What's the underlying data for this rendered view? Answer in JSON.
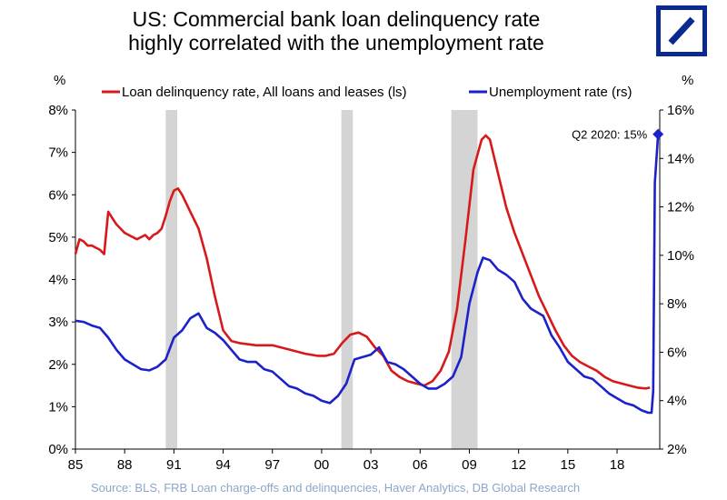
{
  "header": {
    "title_line1": "US: Commercial bank loan delinquency rate",
    "title_line2": "highly correlated with the unemployment rate"
  },
  "logo": {
    "icon": "deutsche-bank-slash-logo",
    "color": "#0b2a8f"
  },
  "source": "Source: BLS, FRB Loan charge-offs and delinquencies, Haver Analytics, DB Global  Research",
  "chart_data": {
    "type": "line",
    "title": "US: Commercial bank loan delinquency rate highly correlated with the unemployment rate",
    "left_axis": {
      "unit_label": "%",
      "range": [
        0,
        8
      ],
      "ticks": [
        "0%",
        "1%",
        "2%",
        "3%",
        "4%",
        "5%",
        "6%",
        "7%",
        "8%"
      ],
      "tick_values": [
        0,
        1,
        2,
        3,
        4,
        5,
        6,
        7,
        8
      ]
    },
    "right_axis": {
      "unit_label": "%",
      "range": [
        2,
        16
      ],
      "ticks": [
        "2%",
        "4%",
        "6%",
        "8%",
        "10%",
        "12%",
        "14%",
        "16%"
      ],
      "tick_values": [
        2,
        4,
        6,
        8,
        10,
        12,
        14,
        16
      ]
    },
    "x_axis": {
      "range": [
        1985,
        2020.6
      ],
      "ticks": [
        "85",
        "88",
        "91",
        "94",
        "97",
        "00",
        "03",
        "06",
        "09",
        "12",
        "15",
        "18"
      ],
      "tick_values": [
        1985,
        1988,
        1991,
        1994,
        1997,
        2000,
        2003,
        2006,
        2009,
        2012,
        2015,
        2018
      ]
    },
    "recessions": [
      [
        1990.5,
        1991.2
      ],
      [
        2001.2,
        2001.9
      ],
      [
        2007.9,
        2009.5
      ]
    ],
    "grid": false,
    "legend_position": "top",
    "annotation": {
      "text": "Q2 2020: 15%",
      "x": 2020.5,
      "y": 15,
      "axis": "right"
    },
    "series": [
      {
        "name": "Loan delinquency rate, All loans and leases (ls)",
        "axis": "left",
        "color": "#d7191c",
        "x": [
          1985.0,
          1985.25,
          1985.5,
          1985.75,
          1986.0,
          1986.25,
          1986.5,
          1986.75,
          1987.0,
          1987.25,
          1987.5,
          1987.75,
          1988.0,
          1988.25,
          1988.5,
          1988.75,
          1989.0,
          1989.25,
          1989.5,
          1989.75,
          1990.0,
          1990.25,
          1990.5,
          1990.75,
          1991.0,
          1991.25,
          1991.5,
          1991.75,
          1992.0,
          1992.5,
          1993.0,
          1993.5,
          1994.0,
          1994.5,
          1995.0,
          1996.0,
          1997.0,
          1998.0,
          1999.0,
          1999.75,
          2000.25,
          2000.75,
          2001.25,
          2001.75,
          2002.25,
          2002.75,
          2003.25,
          2003.75,
          2004.25,
          2004.75,
          2005.25,
          2005.75,
          2006.25,
          2006.75,
          2007.25,
          2007.75,
          2008.25,
          2008.75,
          2009.25,
          2009.75,
          2010.0,
          2010.25,
          2010.5,
          2010.75,
          2011.25,
          2011.75,
          2012.25,
          2012.75,
          2013.25,
          2013.75,
          2014.25,
          2014.75,
          2015.25,
          2015.75,
          2016.25,
          2016.75,
          2017.25,
          2017.75,
          2018.25,
          2018.75,
          2019.25,
          2019.75,
          2020.0
        ],
        "y": [
          4.6,
          4.95,
          4.9,
          4.8,
          4.8,
          4.75,
          4.7,
          4.6,
          5.6,
          5.45,
          5.3,
          5.2,
          5.1,
          5.05,
          5.0,
          4.95,
          5.0,
          5.05,
          4.95,
          5.05,
          5.1,
          5.2,
          5.5,
          5.85,
          6.1,
          6.15,
          6.0,
          5.8,
          5.6,
          5.2,
          4.5,
          3.6,
          2.8,
          2.55,
          2.5,
          2.45,
          2.45,
          2.35,
          2.25,
          2.2,
          2.2,
          2.25,
          2.5,
          2.7,
          2.75,
          2.65,
          2.4,
          2.2,
          1.85,
          1.7,
          1.6,
          1.55,
          1.5,
          1.6,
          1.85,
          2.3,
          3.3,
          4.9,
          6.6,
          7.3,
          7.4,
          7.3,
          6.9,
          6.5,
          5.7,
          5.1,
          4.6,
          4.1,
          3.6,
          3.2,
          2.8,
          2.45,
          2.2,
          2.05,
          1.95,
          1.85,
          1.7,
          1.6,
          1.55,
          1.5,
          1.45,
          1.43,
          1.45
        ]
      },
      {
        "name": "Unemployment rate (rs)",
        "axis": "right",
        "color": "#1b22c9",
        "x": [
          1985.0,
          1985.5,
          1986.0,
          1986.5,
          1987.0,
          1987.5,
          1988.0,
          1988.5,
          1989.0,
          1989.5,
          1990.0,
          1990.5,
          1991.0,
          1991.5,
          1992.0,
          1992.5,
          1993.0,
          1993.5,
          1994.0,
          1994.5,
          1995.0,
          1995.5,
          1996.0,
          1996.5,
          1997.0,
          1997.5,
          1998.0,
          1998.5,
          1999.0,
          1999.5,
          2000.0,
          2000.5,
          2001.0,
          2001.5,
          2002.0,
          2002.5,
          2003.0,
          2003.5,
          2004.0,
          2004.5,
          2005.0,
          2005.5,
          2006.0,
          2006.5,
          2007.0,
          2007.5,
          2008.0,
          2008.5,
          2009.0,
          2009.5,
          2009.83,
          2010.25,
          2010.75,
          2011.25,
          2011.75,
          2012.25,
          2012.75,
          2013.5,
          2014.0,
          2014.5,
          2015.0,
          2015.5,
          2016.0,
          2016.5,
          2017.0,
          2017.5,
          2018.0,
          2018.5,
          2019.0,
          2019.5,
          2019.9,
          2020.1,
          2020.2,
          2020.3,
          2020.5
        ],
        "y": [
          7.3,
          7.25,
          7.1,
          7.0,
          6.6,
          6.1,
          5.7,
          5.5,
          5.3,
          5.25,
          5.4,
          5.7,
          6.6,
          6.9,
          7.4,
          7.6,
          7.0,
          6.8,
          6.5,
          6.1,
          5.7,
          5.6,
          5.6,
          5.3,
          5.2,
          4.9,
          4.6,
          4.5,
          4.3,
          4.2,
          4.0,
          3.9,
          4.2,
          4.7,
          5.7,
          5.8,
          5.9,
          6.2,
          5.6,
          5.5,
          5.3,
          5.0,
          4.7,
          4.5,
          4.5,
          4.7,
          5.0,
          5.8,
          8.0,
          9.3,
          9.9,
          9.8,
          9.4,
          9.2,
          8.9,
          8.2,
          7.8,
          7.5,
          6.7,
          6.2,
          5.6,
          5.3,
          5.0,
          4.9,
          4.6,
          4.3,
          4.1,
          3.9,
          3.8,
          3.6,
          3.5,
          3.5,
          4.4,
          13.0,
          15.0
        ]
      }
    ]
  }
}
